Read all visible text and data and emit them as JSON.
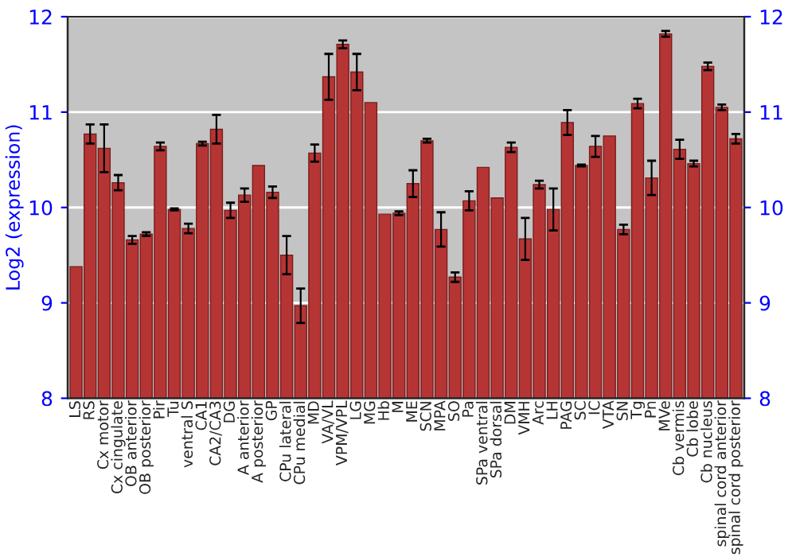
{
  "chart_data": {
    "type": "bar",
    "ylabel": "Log2 (expression)",
    "categories": [
      "LS",
      "RS",
      "Cx motor",
      "Cx cingulate",
      "OB anterior",
      "OB posterior",
      "Pir",
      "Tu",
      "ventral S",
      "CA1",
      "CA2/CA3",
      "DG",
      "A anterior",
      "A posterior",
      "GP",
      "CPu lateral",
      "CPu medial",
      "MD",
      "VA/VL",
      "VPM/VPL",
      "LG",
      "MG",
      "Hb",
      "M",
      "ME",
      "SCN",
      "MPA",
      "SO",
      "Pa",
      "SPa ventral",
      "SPa dorsal",
      "DM",
      "VMH",
      "Arc",
      "LH",
      "PAG",
      "SC",
      "IC",
      "VTA",
      "SN",
      "Tg",
      "Pn",
      "MVe",
      "Cb vermis",
      "Cb lobe",
      "Cb nucleus",
      "spinal cord anterior",
      "spinal cord posterior"
    ],
    "values": [
      9.38,
      10.77,
      10.62,
      10.26,
      9.66,
      9.72,
      10.64,
      9.98,
      9.78,
      10.67,
      10.82,
      9.97,
      10.13,
      10.44,
      10.16,
      9.5,
      8.97,
      10.57,
      11.37,
      11.71,
      11.42,
      11.1,
      9.93,
      9.94,
      10.25,
      10.7,
      9.77,
      9.27,
      10.07,
      10.42,
      10.1,
      10.63,
      9.67,
      10.24,
      9.98,
      10.89,
      10.44,
      10.64,
      10.75,
      9.77,
      11.09,
      10.31,
      11.82,
      10.61,
      10.46,
      11.48,
      11.05,
      10.72
    ],
    "errors": [
      null,
      0.1,
      0.25,
      0.08,
      0.04,
      0.02,
      0.04,
      0.01,
      0.05,
      0.02,
      0.15,
      0.08,
      0.07,
      null,
      0.06,
      0.2,
      0.18,
      0.09,
      0.24,
      0.04,
      0.19,
      null,
      null,
      0.02,
      0.14,
      0.02,
      0.18,
      0.05,
      0.1,
      null,
      null,
      0.05,
      0.22,
      0.04,
      0.22,
      0.13,
      0.01,
      0.11,
      null,
      0.05,
      0.05,
      0.18,
      0.03,
      0.1,
      0.03,
      0.04,
      0.03,
      0.05
    ],
    "color": "#b53535",
    "ylim": [
      8,
      12
    ],
    "yticks": [
      8,
      9,
      10,
      11,
      12
    ],
    "y2lim": [
      8,
      12
    ],
    "y2ticks": [
      8,
      9,
      10,
      11,
      12
    ],
    "grid": "y",
    "legend": false
  }
}
